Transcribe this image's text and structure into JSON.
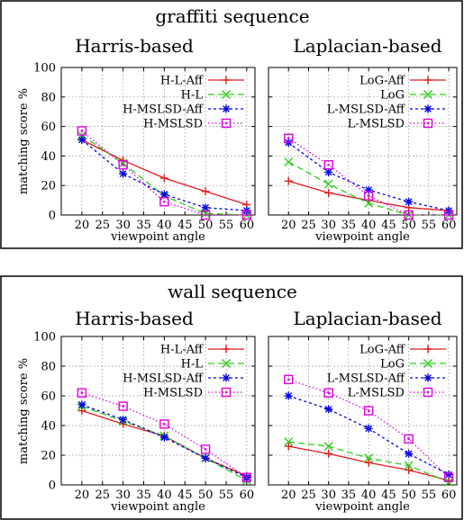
{
  "colors": {
    "red": "#e41a1c",
    "green": "#2ecc1a",
    "blue": "#0000e8",
    "magenta": "#e000e0",
    "grid": "#888888"
  },
  "chart_data": [
    {
      "type": "line",
      "title": "graffiti sequence",
      "subtitle": "Harris-based",
      "xlabel": "viewpoint angle",
      "ylabel": "matching score %",
      "x": [
        20,
        30,
        40,
        50,
        60
      ],
      "xticks": [
        20,
        25,
        30,
        35,
        40,
        45,
        50,
        55,
        60
      ],
      "xlim": [
        15,
        62
      ],
      "ylim": [
        0,
        100
      ],
      "yticks": [
        0,
        20,
        40,
        60,
        80,
        100
      ],
      "show_y": true,
      "grid": true,
      "legend_position": "top-right",
      "series": [
        {
          "name": "H-L-Aff",
          "color": "#e41a1c",
          "dash": "",
          "marker": "plus",
          "values": [
            51,
            37,
            25,
            16,
            7
          ]
        },
        {
          "name": "H-L",
          "color": "#2ecc1a",
          "dash": "7 4",
          "marker": "x",
          "values": [
            54,
            35,
            13,
            1,
            0
          ]
        },
        {
          "name": "H-MSLSD-Aff",
          "color": "#0000e8",
          "dash": "3 3",
          "marker": "star",
          "values": [
            51,
            28,
            14,
            5,
            3
          ]
        },
        {
          "name": "H-MSLSD",
          "color": "#e000e0",
          "dash": "1.5 2.5",
          "marker": "square",
          "values": [
            57,
            34,
            9,
            0,
            0
          ]
        }
      ]
    },
    {
      "type": "line",
      "title": "",
      "subtitle": "Laplacian-based",
      "xlabel": "viewpoint angle",
      "ylabel": "",
      "x": [
        20,
        30,
        40,
        50,
        60
      ],
      "xticks": [
        20,
        25,
        30,
        35,
        40,
        45,
        50,
        55,
        60
      ],
      "xlim": [
        15,
        62
      ],
      "ylim": [
        0,
        100
      ],
      "yticks": [
        0,
        20,
        40,
        60,
        80,
        100
      ],
      "show_y": false,
      "grid": true,
      "legend_position": "top-right",
      "series": [
        {
          "name": "LoG-Aff",
          "color": "#e41a1c",
          "dash": "",
          "marker": "plus",
          "values": [
            23,
            15,
            10,
            5,
            3
          ]
        },
        {
          "name": "LoG",
          "color": "#2ecc1a",
          "dash": "7 4",
          "marker": "x",
          "values": [
            36,
            21,
            8,
            0,
            0
          ]
        },
        {
          "name": "L-MSLSD-Aff",
          "color": "#0000e8",
          "dash": "3 3",
          "marker": "star",
          "values": [
            49,
            29,
            17,
            9,
            3
          ]
        },
        {
          "name": "L-MSLSD",
          "color": "#e000e0",
          "dash": "1.5 2.5",
          "marker": "square",
          "values": [
            52,
            34,
            13,
            0,
            0
          ]
        }
      ]
    },
    {
      "type": "line",
      "title": "wall sequence",
      "subtitle": "Harris-based",
      "xlabel": "viewpoint angle",
      "ylabel": "matching score %",
      "x": [
        20,
        30,
        40,
        50,
        60
      ],
      "xticks": [
        20,
        25,
        30,
        35,
        40,
        45,
        50,
        55,
        60
      ],
      "xlim": [
        15,
        62
      ],
      "ylim": [
        0,
        100
      ],
      "yticks": [
        0,
        20,
        40,
        60,
        80,
        100
      ],
      "show_y": true,
      "grid": true,
      "legend_position": "top-right",
      "series": [
        {
          "name": "H-L-Aff",
          "color": "#e41a1c",
          "dash": "",
          "marker": "plus",
          "values": [
            50,
            41,
            33,
            18,
            6
          ]
        },
        {
          "name": "H-L",
          "color": "#2ecc1a",
          "dash": "7 4",
          "marker": "x",
          "values": [
            53,
            43,
            33,
            18,
            3
          ]
        },
        {
          "name": "H-MSLSD-Aff",
          "color": "#0000e8",
          "dash": "3 3",
          "marker": "star",
          "values": [
            54,
            44,
            32,
            18,
            5
          ]
        },
        {
          "name": "H-MSLSD",
          "color": "#e000e0",
          "dash": "1.5 2.5",
          "marker": "square",
          "values": [
            62,
            53,
            41,
            24,
            5
          ]
        }
      ]
    },
    {
      "type": "line",
      "title": "",
      "subtitle": "Laplacian-based",
      "xlabel": "viewpoint angle",
      "ylabel": "",
      "x": [
        20,
        30,
        40,
        50,
        60
      ],
      "xticks": [
        20,
        25,
        30,
        35,
        40,
        45,
        50,
        55,
        60
      ],
      "xlim": [
        15,
        62
      ],
      "ylim": [
        0,
        100
      ],
      "yticks": [
        0,
        20,
        40,
        60,
        80,
        100
      ],
      "show_y": false,
      "grid": true,
      "legend_position": "top-right",
      "series": [
        {
          "name": "LoG-Aff",
          "color": "#e41a1c",
          "dash": "",
          "marker": "plus",
          "values": [
            26,
            21,
            15,
            10,
            3
          ]
        },
        {
          "name": "LoG",
          "color": "#2ecc1a",
          "dash": "7 4",
          "marker": "x",
          "values": [
            29,
            26,
            18,
            13,
            2
          ]
        },
        {
          "name": "L-MSLSD-Aff",
          "color": "#0000e8",
          "dash": "3 3",
          "marker": "star",
          "values": [
            60,
            51,
            38,
            21,
            7
          ]
        },
        {
          "name": "L-MSLSD",
          "color": "#e000e0",
          "dash": "1.5 2.5",
          "marker": "square",
          "values": [
            71,
            62,
            50,
            31,
            5
          ]
        }
      ]
    }
  ]
}
